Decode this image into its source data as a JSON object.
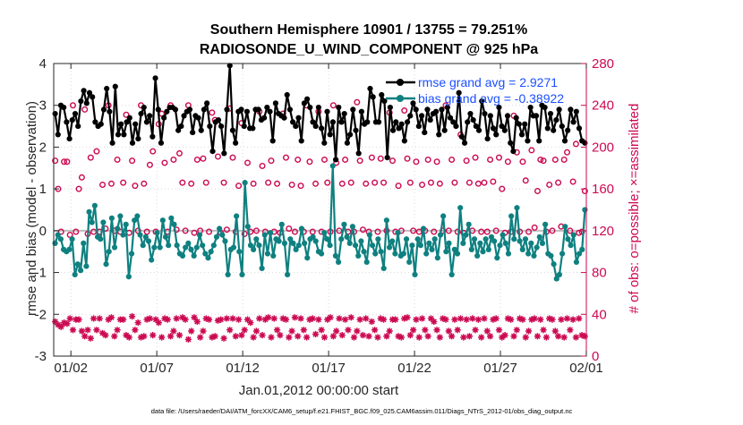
{
  "chart_data": {
    "type": "line",
    "title": "Southern Hemisphere 10901 / 13755 = 79.251%",
    "subtitle": "RADIOSONDE_U_WIND_COMPONENT @ 925 hPa",
    "xlabel": "Jan.01,2012 00:00:00 start",
    "ylabel": "rmse and bias (model - observation)",
    "ylabel_right": "# of obs: o=possible; ×=assimilated",
    "ylim": [
      -3,
      4
    ],
    "ylim_right": [
      0,
      280
    ],
    "xlim": [
      0,
      31
    ],
    "x_ticks": [
      1,
      6,
      11,
      16,
      21,
      26,
      31
    ],
    "x_tick_labels": [
      "01/02",
      "01/07",
      "01/12",
      "01/17",
      "01/22",
      "01/27",
      "02/01"
    ],
    "y_ticks": [
      "-3",
      "-2",
      "-1",
      "0",
      "1",
      "2",
      "3",
      "4"
    ],
    "y_ticks_right": [
      "0",
      "40",
      "80",
      "120",
      "160",
      "200",
      "240",
      "280"
    ],
    "footnote": "data file: /Users/raeder/DAI/ATM_forcXX/CAM6_setup/f.e21.FHIST_BGC.f09_025.CAM6assim.011/Diags_NTrS_2012-01/obs_diag_output.nc",
    "legend_location": "top-right",
    "series": [
      {
        "name": "rmse grand avg = 2.9271",
        "color": "#000000",
        "axis": "left",
        "values": [
          2.8,
          2.3,
          3.0,
          2.95,
          2.6,
          2.2,
          2.65,
          2.8,
          2.5,
          3.1,
          3.35,
          3.05,
          3.3,
          3.2,
          2.6,
          2.5,
          2.55,
          2.9,
          3.4,
          2.85,
          2.1,
          3.45,
          2.3,
          2.55,
          2.3,
          2.6,
          2.7,
          2.1,
          2.55,
          2.2,
          2.8,
          2.95,
          2.6,
          2.75,
          2.25,
          3.65,
          2.9,
          2.1,
          2.7,
          2.85,
          2.95,
          2.95,
          2.9,
          2.4,
          2.5,
          2.75,
          2.85,
          2.9,
          2.35,
          2.75,
          2.7,
          2.4,
          2.9,
          3.05,
          2.5,
          1.9,
          2.6,
          2.65,
          2.5,
          1.85,
          2.9,
          3.95,
          2.4,
          2.1,
          2.85,
          2.9,
          2.5,
          2.85,
          2.45,
          2.45,
          2.9,
          2.9,
          2.65,
          2.7,
          2.95,
          2.85,
          2.15,
          3.05,
          2.8,
          2.75,
          2.7,
          3.25,
          2.9,
          2.6,
          2.5,
          2.7,
          2.15,
          3.05,
          3.15,
          2.95,
          2.6,
          2.5,
          2.95,
          2.45,
          2.1,
          2.85,
          2.3,
          2.6,
          1.7,
          2.95,
          2.6,
          2.8,
          2.1,
          2.3,
          2.9,
          2.4,
          1.85,
          2.85,
          2.55,
          2.6,
          3.4,
          3.2,
          2.6,
          2.6,
          3.25,
          3.1,
          1.75,
          2.95,
          2.4,
          2.6,
          2.45,
          2.55,
          2.15,
          2.6,
          2.75,
          3.05,
          2.9,
          2.5,
          2.75,
          2.35,
          2.9,
          2.65,
          2.8,
          2.85,
          2.3,
          2.9,
          2.4,
          2.95,
          2.7,
          2.6,
          2.5,
          3.3,
          2.25,
          2.1,
          2.6,
          2.8,
          2.65,
          2.5,
          2.4,
          3.1,
          2.8,
          2.2,
          2.75,
          2.45,
          2.3,
          2.95,
          2.5,
          2.4,
          2.75,
          2.1,
          1.9,
          2.7,
          2.55,
          2.3,
          2.55,
          2.15,
          2.95,
          2.75,
          2.75,
          2.15,
          3.0,
          2.95,
          2.45,
          2.8,
          2.4,
          2.65,
          2.9,
          2.5,
          2.15,
          2.4,
          2.9,
          2.6,
          2.85,
          2.45,
          2.15,
          2.1
        ]
      },
      {
        "name": "bias grand avg = -0.38922",
        "color": "#0f8080",
        "axis": "left",
        "values": [
          -0.3,
          -0.1,
          -0.2,
          -0.45,
          -0.5,
          -0.45,
          -0.2,
          -1.05,
          -0.8,
          -0.95,
          -0.3,
          -0.85,
          0.45,
          0.2,
          0.6,
          -0.15,
          -0.2,
          0.2,
          -0.8,
          -0.5,
          0.3,
          -0.4,
          0.05,
          0.35,
          -0.1,
          0.15,
          -1.1,
          -0.55,
          0.25,
          0.35,
          -0.1,
          -0.35,
          -0.15,
          -0.25,
          -0.7,
          -0.4,
          -0.05,
          -0.4,
          0.25,
          -0.15,
          -0.35,
          0.3,
          0.15,
          -0.35,
          -0.55,
          -0.6,
          -0.4,
          -0.3,
          -0.45,
          -0.6,
          -0.4,
          -0.1,
          -0.35,
          -0.55,
          -0.65,
          -0.5,
          -0.35,
          -0.15,
          0.05,
          -0.1,
          -0.25,
          -1.05,
          -0.45,
          -0.4,
          0.35,
          -0.5,
          -1.05,
          1.15,
          0.1,
          -0.35,
          -0.45,
          -0.2,
          -0.35,
          -0.9,
          -0.1,
          -0.55,
          -0.05,
          -0.6,
          -0.2,
          -0.25,
          0.15,
          -0.3,
          -1.05,
          -0.2,
          -0.3,
          -0.45,
          -0.35,
          0.05,
          -0.3,
          -0.65,
          -0.2,
          -0.15,
          -0.25,
          -0.5,
          -0.55,
          -0.05,
          -0.2,
          -0.35,
          1.55,
          -0.6,
          -0.75,
          -0.2,
          0.15,
          -0.15,
          -0.3,
          0.1,
          -0.35,
          -0.6,
          -0.25,
          -0.5,
          -0.75,
          -0.1,
          -0.35,
          -0.55,
          -0.2,
          -0.5,
          -0.9,
          0.25,
          -0.4,
          -0.25,
          -0.55,
          -0.05,
          -0.6,
          -0.55,
          -0.2,
          -0.75,
          -0.35,
          -1.05,
          -0.2,
          -0.35,
          0.05,
          -0.55,
          -0.3,
          -0.45,
          -0.2,
          -0.65,
          -0.1,
          0.35,
          -0.5,
          -0.3,
          -1.05,
          -0.45,
          -0.55,
          0.55,
          -0.3,
          -0.1,
          0.15,
          -0.45,
          -0.2,
          -0.6,
          -0.3,
          -0.5,
          -0.2,
          -0.45,
          -0.15,
          -0.25,
          -0.65,
          -0.35,
          -0.1,
          -0.3,
          -0.55,
          0.35,
          -0.2,
          0.55,
          -0.25,
          -0.45,
          -0.2,
          -0.55,
          -0.3,
          -0.6,
          -0.4,
          -0.15,
          -0.3,
          0.15,
          -0.55,
          -0.6,
          -0.8,
          -1.15,
          -1.05,
          -0.55,
          0.1,
          -0.2,
          -0.35,
          -0.1,
          -0.75,
          -0.55,
          -0.45,
          0.5
        ]
      },
      {
        "name": "obs possible",
        "color": "#cc0a52",
        "axis": "right",
        "values": [
          187,
          160,
          119,
          186,
          186,
          116,
          240,
          119,
          160,
          171,
          236,
          117,
          190,
          119,
          196,
          119,
          164,
          122,
          240,
          165,
          120,
          188,
          119,
          166,
          231,
          118,
          187,
          163,
          120,
          240,
          165,
          119,
          183,
          196,
          119,
          222,
          232,
          185,
          119,
          240,
          188,
          121,
          194,
          166,
          120,
          240,
          165,
          118,
          188,
          120,
          189,
          166,
          119,
          233,
          226,
          191,
          118,
          166,
          121,
          237,
          190,
          119,
          163,
          223,
          117,
          185,
          119,
          165,
          120,
          234,
          182,
          119,
          166,
          187,
          119,
          165,
          118,
          232,
          190,
          122,
          164,
          119,
          188,
          163,
          119,
          240,
          186,
          119,
          165,
          234,
          119,
          188,
          166,
          119,
          240,
          185,
          120,
          165,
          188,
          119,
          166,
          119,
          243,
          187,
          121,
          165,
          119,
          190,
          166,
          119,
          189,
          166,
          120,
          233,
          187,
          119,
          163,
          120,
          235,
          189,
          166,
          120,
          186,
          119,
          164,
          120,
          188,
          166,
          119,
          186,
          165,
          120,
          240,
          120,
          188,
          166,
          119,
          212,
          118,
          187,
          166,
          120,
          190,
          165,
          119,
          166,
          119,
          188,
          167,
          120,
          190,
          160,
          118,
          186,
          119,
          230,
          195,
          119,
          186,
          168,
          119,
          197,
          123,
          158,
          188,
          187,
          119,
          164,
          120,
          188,
          166,
          124,
          188,
          195,
          120,
          167,
          203,
          118,
          119,
          158
        ]
      },
      {
        "name": "obs assimilated",
        "color": "#cc0a52",
        "axis": "right",
        "values": [
          33,
          30,
          28,
          32,
          31,
          36,
          25,
          35,
          35,
          24,
          19,
          25,
          17,
          36,
          25,
          36,
          22,
          20,
          35,
          37,
          19,
          25,
          35,
          35,
          20,
          18,
          38,
          25,
          32,
          18,
          19,
          35,
          36,
          20,
          35,
          32,
          18,
          36,
          35,
          19,
          24,
          36,
          20,
          37,
          35,
          16,
          24,
          37,
          33,
          18,
          24,
          36,
          35,
          18,
          19,
          34,
          35,
          17,
          36,
          25,
          36,
          19,
          35,
          20,
          25,
          35,
          32,
          18,
          24,
          36,
          20,
          35,
          37,
          18,
          36,
          25,
          20,
          36,
          35,
          18,
          24,
          37,
          19,
          36,
          25,
          18,
          35,
          36,
          21,
          35,
          25,
          18,
          35,
          37,
          19,
          24,
          36,
          20,
          35,
          25,
          37,
          18,
          24,
          35,
          20,
          36,
          19,
          33,
          25,
          18,
          36,
          35,
          19,
          24,
          35,
          35,
          19,
          18,
          36,
          37,
          20,
          25,
          35,
          18,
          36,
          25,
          19,
          36,
          33,
          25,
          18,
          36,
          35,
          24,
          19,
          35,
          25,
          36,
          18,
          35,
          19,
          36,
          25,
          35,
          18,
          36,
          24,
          19,
          35,
          36,
          25,
          18,
          20,
          36,
          35,
          19,
          25,
          36,
          35,
          18,
          24,
          35,
          36,
          19,
          35,
          25,
          18,
          36,
          35,
          24,
          19,
          35,
          18,
          36,
          25,
          35,
          18,
          36,
          20,
          19
        ]
      }
    ]
  }
}
